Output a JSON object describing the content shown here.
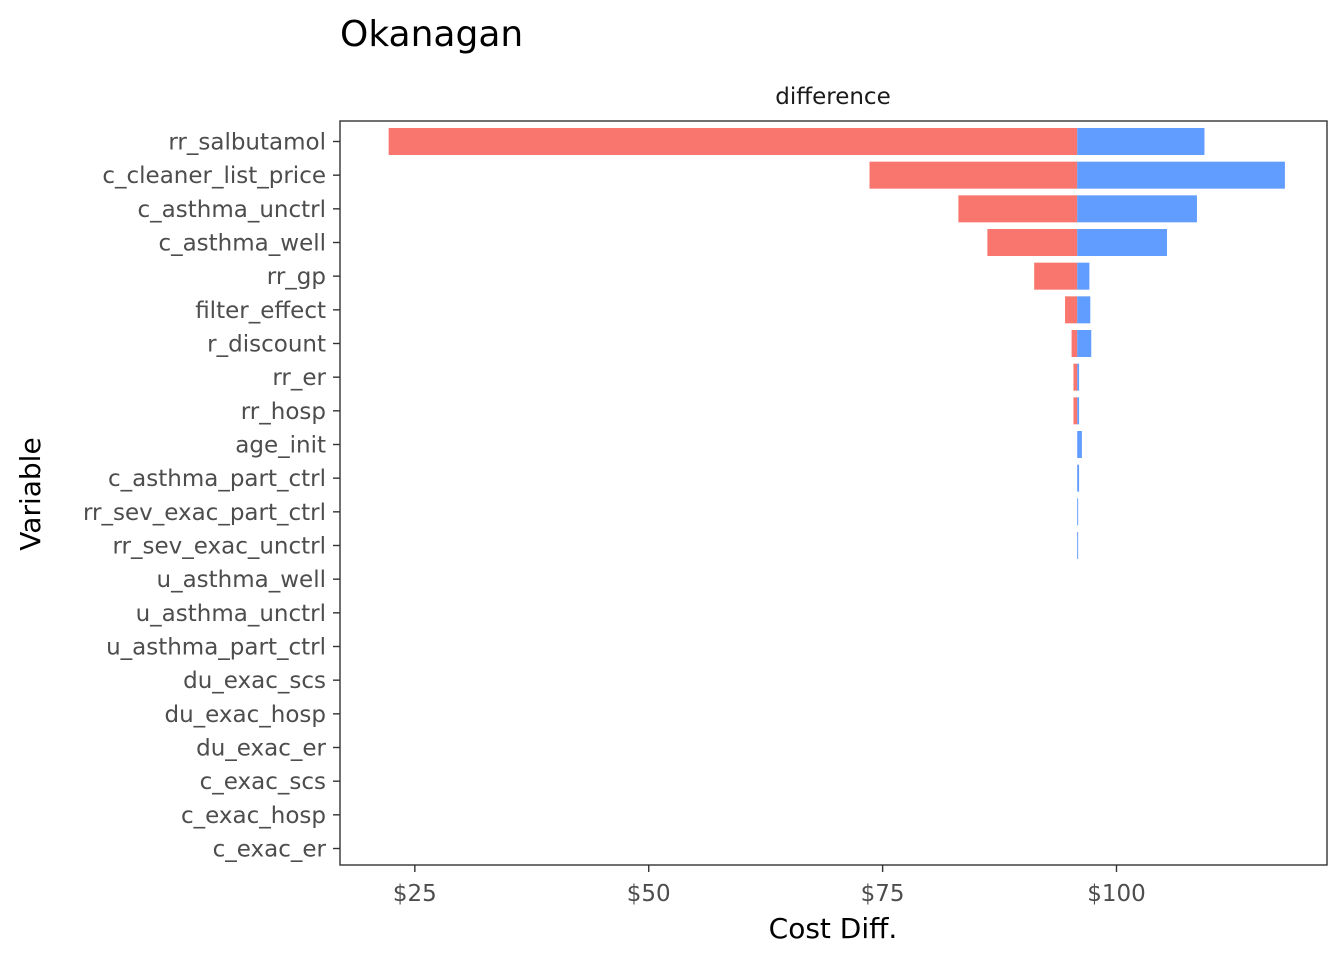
{
  "chart_data": {
    "type": "bar",
    "title": "Okanagan",
    "facet_label": "difference",
    "xlabel": "Cost Diff.",
    "ylabel": "Variable",
    "xlim": [
      17,
      122.5
    ],
    "x_ticks": [
      25,
      50,
      75,
      100
    ],
    "x_tick_labels": [
      "$25",
      "$50",
      "$75",
      "$100"
    ],
    "baseline": 95.8,
    "orientation": "horizontal",
    "grid": false,
    "colors": {
      "low": "#F8766D",
      "high": "#619CFF",
      "panel_border": "#333333",
      "tick": "#333333"
    },
    "categories": [
      "rr_salbutamol",
      "c_cleaner_list_price",
      "c_asthma_unctrl",
      "c_asthma_well",
      "rr_gp",
      "filter_effect",
      "r_discount",
      "rr_er",
      "rr_hosp",
      "age_init",
      "c_asthma_part_ctrl",
      "rr_sev_exac_part_ctrl",
      "rr_sev_exac_unctrl",
      "u_asthma_well",
      "u_asthma_unctrl",
      "u_asthma_part_ctrl",
      "du_exac_scs",
      "du_exac_hosp",
      "du_exac_er",
      "c_exac_scs",
      "c_exac_hosp",
      "c_exac_er"
    ],
    "series": [
      {
        "name": "low",
        "values": [
          22.2,
          73.6,
          83.1,
          86.2,
          91.2,
          94.5,
          95.2,
          95.4,
          95.4,
          95.8,
          95.8,
          95.8,
          95.8,
          95.8,
          95.8,
          95.8,
          95.8,
          95.8,
          95.8,
          95.8,
          95.8,
          95.8
        ]
      },
      {
        "name": "high",
        "values": [
          109.4,
          118.0,
          108.6,
          105.4,
          97.1,
          97.2,
          97.3,
          96.0,
          96.0,
          96.3,
          96.0,
          95.9,
          95.9,
          95.8,
          95.8,
          95.8,
          95.8,
          95.8,
          95.8,
          95.8,
          95.8,
          95.8
        ]
      }
    ]
  }
}
